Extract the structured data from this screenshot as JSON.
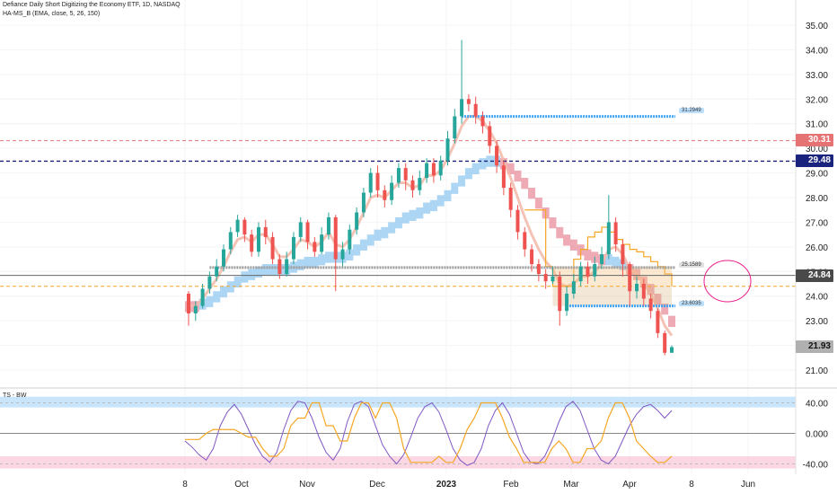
{
  "header": {
    "title": "Defiance Daily Short Digitizing the Economy ETF, 1D, NASDAQ",
    "indicator": "HA-MS_B (EMA, close, 5, 26, 150)"
  },
  "price_tags": {
    "red": "30.31",
    "blue": "29.48",
    "dark": "24.84",
    "last": "21.93"
  },
  "levels": {
    "upper": "31.2949",
    "middle": "25.1589",
    "lower": "23.6035"
  },
  "oscillator": {
    "name": "TS - BW"
  },
  "colors": {
    "bull": "#26a69a",
    "bear": "#ef5350",
    "ema_fast": "#f2b8a8",
    "ema_cloud_up": "#90c8f0",
    "ema_cloud_down": "#e88896",
    "hline_red": "#e57373",
    "hline_blue": "#1a237e",
    "accent_orange": "#f5a623",
    "dot_blue": "#42a5f5",
    "ellipse": "#e91e8c"
  },
  "chart_data": {
    "type": "candlestick",
    "price_axis": {
      "ticks": [
        21.0,
        22.0,
        23.0,
        24.0,
        25.0,
        26.0,
        27.0,
        28.0,
        29.0,
        30.0,
        31.0,
        32.0,
        33.0,
        34.0,
        35.0
      ]
    },
    "time_axis": {
      "ticks": [
        "8",
        "Oct",
        "Nov",
        "Dec",
        "2023",
        "Feb",
        "Mar",
        "Apr",
        "8",
        "Jun"
      ]
    },
    "horizontal_lines": [
      {
        "value": 30.31,
        "style": "dashed",
        "color": "red"
      },
      {
        "value": 29.48,
        "style": "dashed",
        "color": "navy"
      },
      {
        "value": 24.84,
        "style": "solid",
        "color": "gray"
      },
      {
        "value": 24.4,
        "style": "dashed",
        "color": "orange"
      }
    ],
    "support_levels": [
      31.2949,
      25.1589,
      23.6035
    ],
    "candles": [
      [
        24.1,
        23.3,
        24.2,
        22.8
      ],
      [
        23.3,
        23.6,
        23.8,
        23.0
      ],
      [
        23.6,
        24.3,
        24.5,
        23.5
      ],
      [
        24.3,
        24.8,
        25.0,
        24.1
      ],
      [
        24.8,
        25.2,
        25.5,
        24.6
      ],
      [
        25.2,
        25.9,
        26.1,
        25.0
      ],
      [
        25.9,
        26.6,
        26.8,
        25.7
      ],
      [
        26.6,
        27.1,
        27.3,
        26.4
      ],
      [
        27.1,
        26.5,
        27.2,
        26.2
      ],
      [
        26.5,
        25.8,
        26.7,
        25.6
      ],
      [
        25.8,
        26.8,
        27.0,
        25.6
      ],
      [
        26.8,
        26.4,
        27.1,
        26.1
      ],
      [
        26.4,
        25.5,
        26.6,
        25.3
      ],
      [
        25.5,
        24.9,
        25.7,
        24.7
      ],
      [
        24.9,
        25.5,
        25.8,
        24.8
      ],
      [
        25.5,
        26.4,
        26.6,
        25.3
      ],
      [
        26.4,
        27.0,
        27.2,
        26.2
      ],
      [
        27.0,
        26.2,
        27.1,
        25.9
      ],
      [
        26.2,
        25.8,
        26.4,
        25.6
      ],
      [
        25.8,
        26.5,
        26.8,
        25.7
      ],
      [
        26.5,
        27.2,
        27.4,
        26.3
      ],
      [
        27.2,
        25.5,
        27.3,
        24.2
      ],
      [
        25.5,
        25.9,
        26.2,
        25.2
      ],
      [
        25.9,
        26.7,
        26.9,
        25.7
      ],
      [
        26.7,
        27.4,
        27.6,
        26.5
      ],
      [
        27.4,
        28.2,
        28.4,
        27.2
      ],
      [
        28.2,
        29.0,
        29.2,
        28.0
      ],
      [
        29.0,
        28.3,
        29.3,
        28.0
      ],
      [
        28.3,
        27.9,
        28.5,
        27.6
      ],
      [
        27.9,
        28.6,
        28.9,
        27.7
      ],
      [
        28.6,
        29.2,
        29.4,
        28.4
      ],
      [
        29.2,
        28.7,
        29.4,
        28.3
      ],
      [
        28.7,
        28.3,
        28.9,
        28.0
      ],
      [
        28.3,
        28.8,
        29.1,
        28.1
      ],
      [
        28.8,
        29.4,
        29.6,
        28.6
      ],
      [
        29.4,
        28.9,
        29.6,
        28.6
      ],
      [
        28.9,
        29.5,
        29.7,
        28.7
      ],
      [
        29.5,
        30.4,
        30.7,
        29.3
      ],
      [
        30.4,
        31.3,
        31.6,
        30.2
      ],
      [
        31.3,
        32.0,
        34.4,
        31.0
      ],
      [
        32.0,
        31.8,
        32.2,
        31.5
      ],
      [
        31.8,
        31.3,
        32.1,
        31.0
      ],
      [
        31.3,
        30.9,
        31.5,
        30.6
      ],
      [
        30.9,
        30.1,
        31.1,
        29.8
      ],
      [
        30.1,
        29.3,
        30.3,
        29.0
      ],
      [
        29.3,
        28.4,
        29.5,
        28.1
      ],
      [
        28.4,
        27.5,
        28.6,
        27.2
      ],
      [
        27.5,
        26.6,
        27.7,
        26.3
      ],
      [
        26.6,
        25.9,
        26.8,
        25.6
      ],
      [
        25.9,
        25.3,
        26.1,
        25.0
      ],
      [
        25.3,
        24.9,
        25.5,
        24.6
      ],
      [
        24.9,
        24.6,
        25.1,
        24.3
      ],
      [
        24.6,
        24.8,
        25.2,
        24.5
      ],
      [
        24.8,
        23.4,
        25.0,
        22.8
      ],
      [
        23.4,
        24.1,
        24.4,
        23.2
      ],
      [
        24.1,
        24.6,
        24.9,
        23.9
      ],
      [
        24.6,
        25.2,
        25.4,
        24.4
      ],
      [
        25.2,
        24.8,
        25.4,
        24.5
      ],
      [
        24.8,
        25.3,
        25.6,
        24.6
      ],
      [
        25.3,
        25.7,
        26.0,
        25.1
      ],
      [
        25.7,
        27.0,
        28.1,
        25.5
      ],
      [
        27.0,
        26.1,
        27.2,
        25.8
      ],
      [
        26.1,
        25.3,
        26.3,
        24.8
      ],
      [
        25.3,
        24.2,
        25.4,
        23.6
      ],
      [
        24.2,
        24.5,
        24.8,
        23.9
      ],
      [
        24.5,
        23.9,
        24.7,
        23.6
      ],
      [
        23.9,
        23.4,
        24.1,
        23.1
      ],
      [
        23.4,
        22.5,
        23.5,
        22.3
      ],
      [
        22.5,
        21.7,
        22.6,
        21.6
      ],
      [
        21.7,
        21.93,
        22.0,
        21.9
      ]
    ],
    "ema_fast": [
      23.6,
      23.6,
      23.9,
      24.3,
      24.7,
      25.2,
      25.8,
      26.3,
      26.4,
      26.2,
      26.5,
      26.5,
      26.1,
      25.6,
      25.6,
      25.9,
      26.3,
      26.2,
      26.0,
      26.2,
      26.6,
      26.1,
      26.0,
      26.3,
      26.8,
      27.4,
      28.0,
      28.1,
      28.0,
      28.3,
      28.6,
      28.6,
      28.4,
      28.5,
      28.9,
      28.9,
      29.1,
      29.6,
      30.2,
      30.9,
      31.3,
      31.3,
      31.1,
      30.7,
      30.2,
      29.5,
      28.8,
      28.0,
      27.2,
      26.5,
      25.9,
      25.4,
      25.1,
      24.5,
      24.4,
      24.5,
      24.8,
      24.8,
      25.0,
      25.3,
      25.9,
      26.0,
      25.7,
      25.1,
      24.9,
      24.5,
      24.1,
      23.5,
      22.8,
      22.4
    ],
    "ema_slow": [
      23.8,
      23.8,
      23.9,
      24.0,
      24.2,
      24.4,
      24.6,
      24.8,
      25.0,
      25.1,
      25.2,
      25.3,
      25.3,
      25.3,
      25.3,
      25.4,
      25.5,
      25.6,
      25.6,
      25.7,
      25.8,
      25.8,
      25.8,
      25.9,
      26.1,
      26.3,
      26.5,
      26.7,
      26.8,
      27.0,
      27.2,
      27.4,
      27.5,
      27.6,
      27.8,
      27.9,
      28.1,
      28.3,
      28.6,
      28.9,
      29.2,
      29.4,
      29.6,
      29.7,
      29.7,
      29.6,
      29.4,
      29.1,
      28.8,
      28.4,
      28.0,
      27.6,
      27.2,
      26.8,
      26.5,
      26.3,
      26.1,
      25.9,
      25.8,
      25.7,
      25.7,
      25.6,
      25.5,
      25.3,
      25.1,
      24.8,
      24.5,
      24.1,
      23.7,
      23.2
    ],
    "orange_band": [
      null,
      null,
      null,
      null,
      null,
      null,
      null,
      null,
      null,
      null,
      null,
      null,
      null,
      null,
      null,
      null,
      null,
      null,
      null,
      null,
      null,
      null,
      null,
      null,
      null,
      null,
      null,
      null,
      null,
      null,
      null,
      null,
      null,
      null,
      null,
      null,
      null,
      null,
      null,
      null,
      null,
      null,
      null,
      null,
      null,
      null,
      null,
      null,
      27.5,
      27.5,
      27.5,
      25.2,
      24.4,
      24.4,
      24.4,
      25.5,
      25.9,
      26.4,
      26.6,
      26.8,
      26.6,
      26.3,
      26.1,
      25.9,
      25.8,
      25.6,
      25.4,
      25.2,
      24.9,
      24.4
    ],
    "oscillator": {
      "axis_ticks": [
        40.0,
        0.0,
        -40.0
      ],
      "purple_line": [
        -10,
        -18,
        -28,
        -35,
        -20,
        10,
        28,
        38,
        25,
        5,
        -15,
        -30,
        -38,
        -25,
        5,
        30,
        42,
        40,
        20,
        -5,
        -25,
        -35,
        -20,
        15,
        38,
        42,
        35,
        10,
        -15,
        -30,
        -40,
        -28,
        -5,
        20,
        35,
        40,
        28,
        5,
        -20,
        -35,
        -42,
        -38,
        -20,
        10,
        30,
        40,
        25,
        0,
        -25,
        -38,
        -40,
        -30,
        -10,
        15,
        35,
        42,
        30,
        5,
        -20,
        -35,
        -40,
        -30,
        -10,
        10,
        25,
        35,
        38,
        30,
        20,
        30
      ],
      "orange_line": [
        -8,
        -8,
        -8,
        0,
        5,
        5,
        5,
        5,
        0,
        -5,
        -5,
        -20,
        -30,
        -30,
        -20,
        10,
        20,
        20,
        40,
        40,
        10,
        10,
        -10,
        -10,
        20,
        40,
        40,
        20,
        40,
        40,
        20,
        -20,
        -38,
        -38,
        -38,
        -38,
        -30,
        -38,
        -38,
        -20,
        5,
        20,
        40,
        40,
        40,
        20,
        -5,
        -20,
        -38,
        -38,
        -38,
        -38,
        -20,
        -10,
        -20,
        -38,
        -38,
        -20,
        -20,
        -10,
        20,
        40,
        40,
        20,
        -10,
        -20,
        -30,
        -38,
        -38,
        -30
      ]
    }
  }
}
